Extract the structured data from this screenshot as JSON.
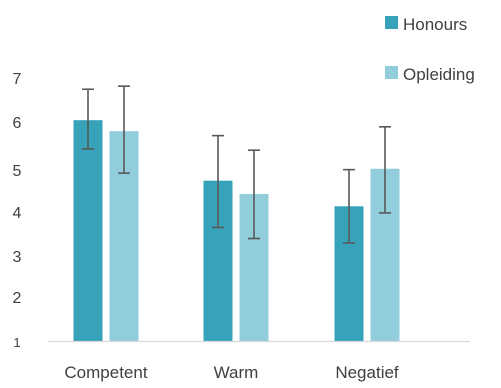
{
  "chart_data": {
    "type": "bar",
    "categories": [
      "Competent",
      "Warm",
      "Negatief"
    ],
    "series": [
      {
        "name": "Honours",
        "color": "#36A3BA",
        "values": [
          6.0,
          4.63,
          4.05
        ],
        "error_low": [
          5.35,
          3.57,
          3.22
        ],
        "error_high": [
          6.7,
          5.65,
          4.88
        ]
      },
      {
        "name": "Opleiding",
        "color": "#92CDDC",
        "values": [
          5.75,
          4.33,
          4.9
        ],
        "error_low": [
          4.8,
          3.32,
          3.9
        ],
        "error_high": [
          6.77,
          5.32,
          5.85
        ]
      }
    ],
    "y_ticks": [
      "1",
      "2",
      "3",
      "4",
      "5",
      "6",
      "7"
    ],
    "ylim": [
      1,
      7
    ],
    "title": "",
    "xlabel": "",
    "ylabel": "",
    "grid": false,
    "legend_position": "top-right",
    "error_bar_color": "#595959",
    "axis_color": "#D9D9D9"
  }
}
